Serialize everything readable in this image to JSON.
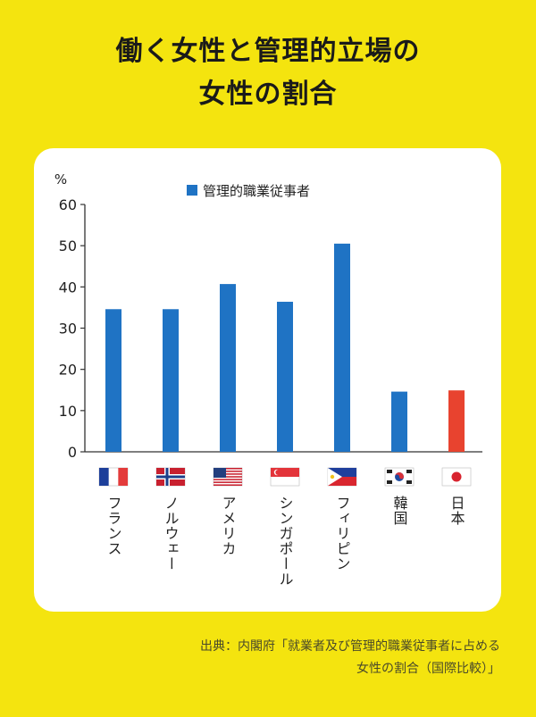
{
  "title_line1": "働く女性と管理的立場の",
  "title_line2": "女性の割合",
  "source_line1": "出典：内閣府「就業者及び管理的職業従事者に占める",
  "source_line2": "女性の割合（国際比較）」",
  "chart_data": {
    "type": "bar",
    "categories": [
      "フランス",
      "ノルウェー",
      "アメリカ",
      "シンガポール",
      "フィリピン",
      "韓国",
      "日本"
    ],
    "series": [
      {
        "name": "管理的職業従事者",
        "values": [
          34.6,
          34.6,
          40.7,
          36.4,
          50.5,
          14.6,
          14.9
        ]
      }
    ],
    "bar_colors": [
      "#1f73c4",
      "#1f73c4",
      "#1f73c4",
      "#1f73c4",
      "#1f73c4",
      "#1f73c4",
      "#e8432f"
    ],
    "flag_icons": [
      "flag-france-icon",
      "flag-norway-icon",
      "flag-usa-icon",
      "flag-singapore-icon",
      "flag-philippines-icon",
      "flag-korea-icon",
      "flag-japan-icon"
    ],
    "yunit": "%",
    "ylim": [
      0,
      60
    ],
    "yticks": [
      0,
      10,
      20,
      30,
      40,
      50,
      60
    ],
    "legend_position": "top",
    "grid": false
  }
}
